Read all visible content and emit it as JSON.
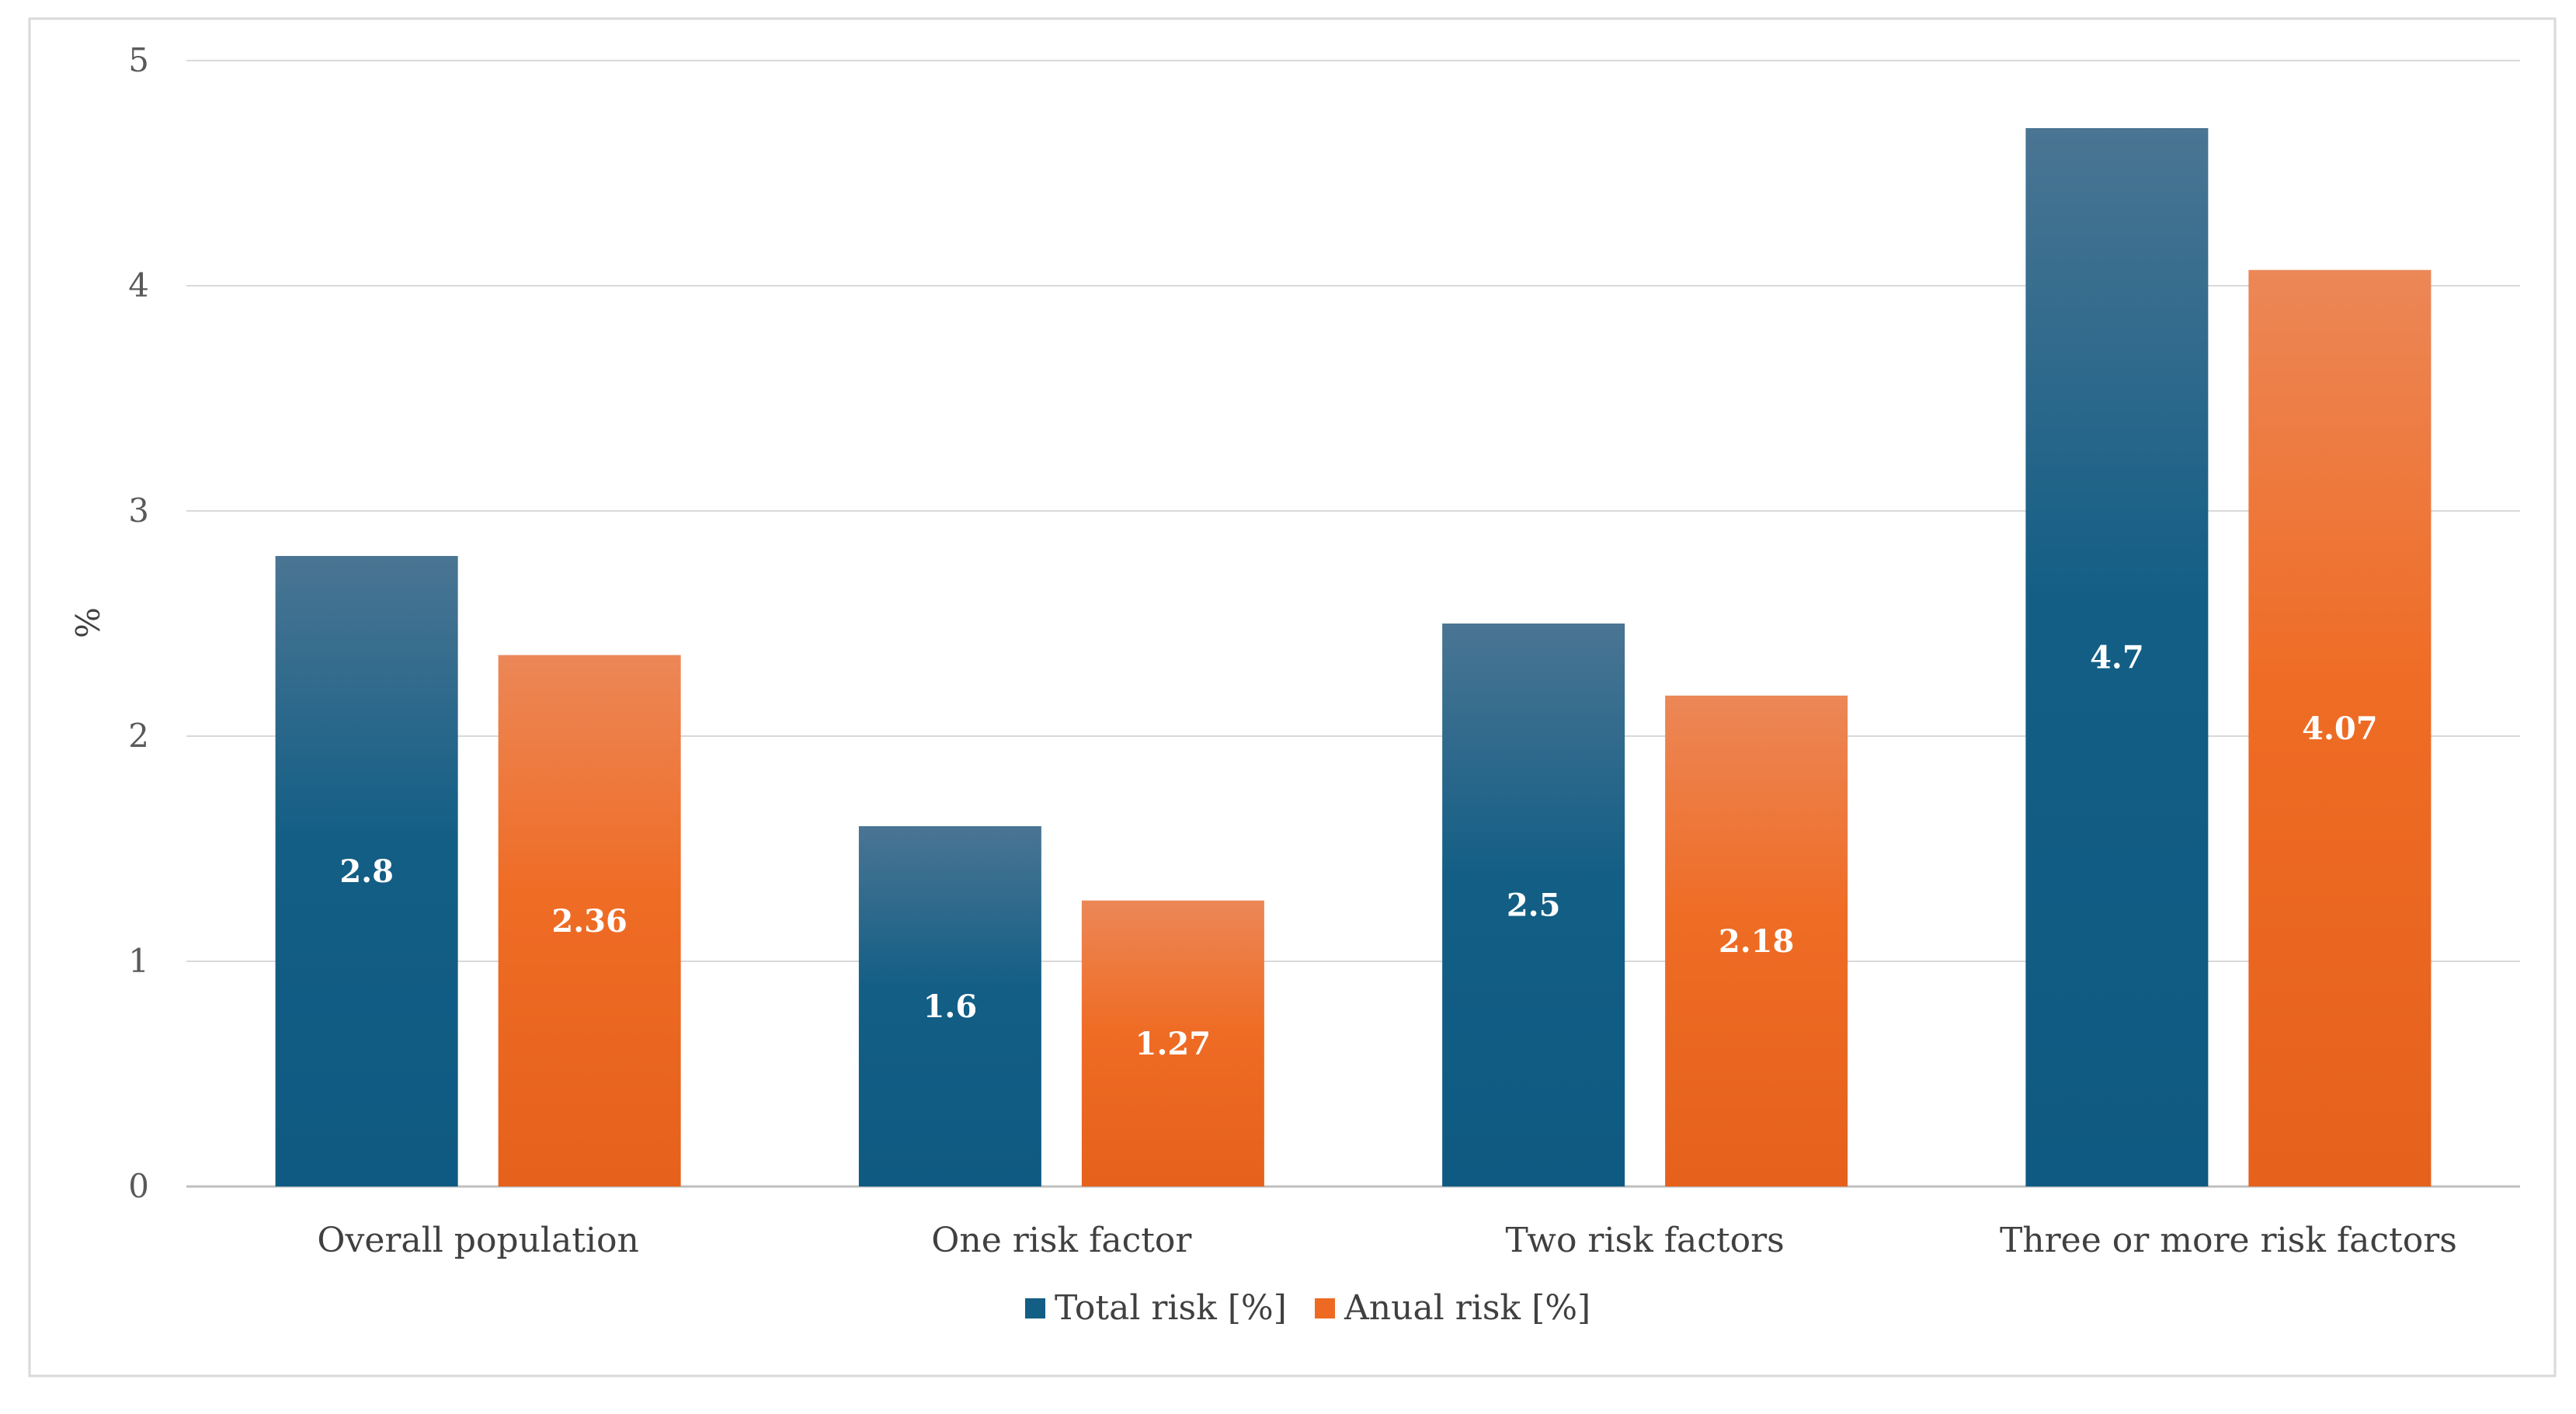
{
  "chart_data": {
    "type": "bar",
    "title": "",
    "xlabel": "",
    "ylabel": "%",
    "ylim": [
      0,
      5
    ],
    "yticks": [
      "0",
      "1",
      "2",
      "3",
      "4",
      "5"
    ],
    "grid": true,
    "legend_position": "bottom",
    "categories": [
      "Overall population",
      "One risk factor",
      "Two risk factors",
      "Three or more risk factors"
    ],
    "series": [
      {
        "name": "Total risk [%]",
        "values": [
          2.8,
          1.6,
          2.5,
          4.7
        ],
        "labels": [
          "2.8",
          "1.6",
          "2.5",
          "4.7"
        ],
        "color": "#135e85"
      },
      {
        "name": "Anual risk [%]",
        "values": [
          2.36,
          1.27,
          2.18,
          4.07
        ],
        "labels": [
          "2.36",
          "1.27",
          "2.18",
          "4.07"
        ],
        "color": "#ee6a22"
      }
    ]
  }
}
